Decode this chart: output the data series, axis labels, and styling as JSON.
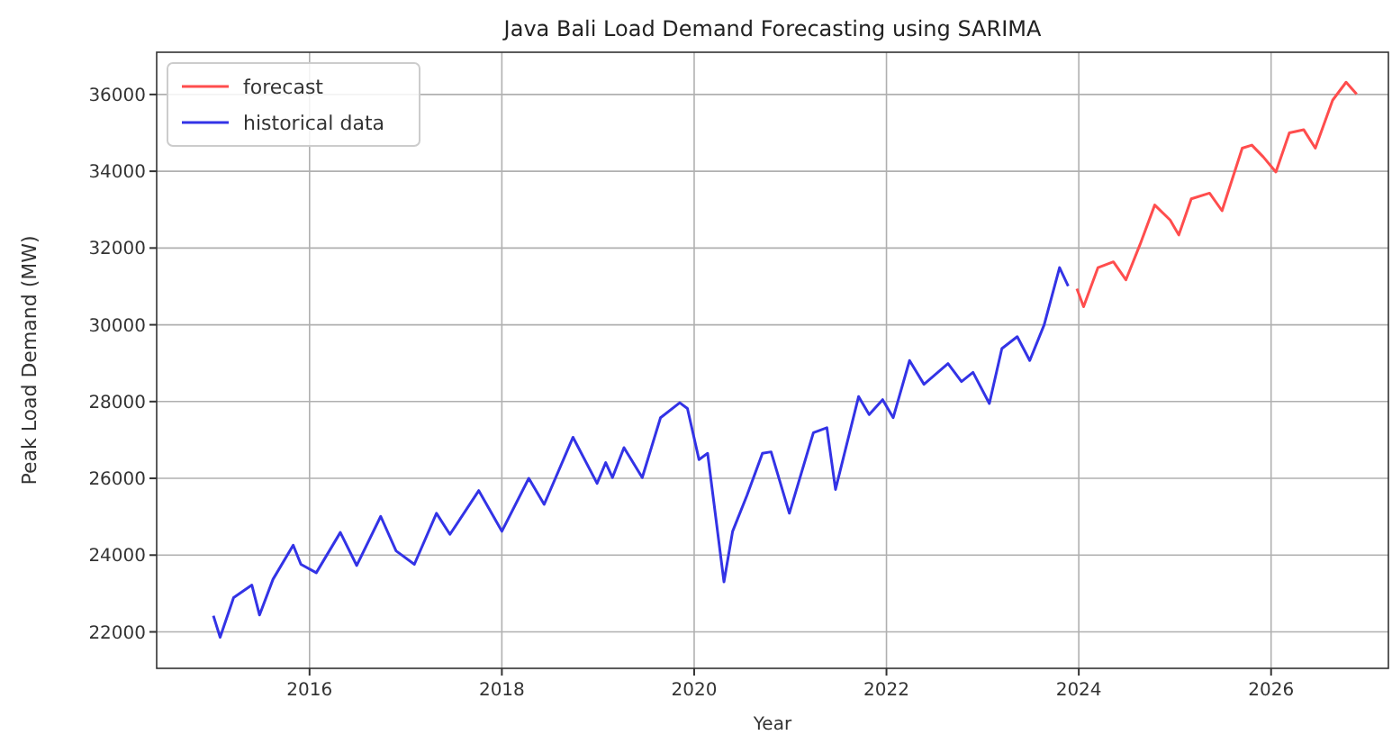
{
  "chart_data": {
    "type": "line",
    "title": "Java Bali Load Demand Forecasting using SARIMA",
    "xlabel": "Year",
    "ylabel": "Peak Load Demand (MW)",
    "xlim": [
      2014.41,
      2027.22
    ],
    "xticks": [
      2016,
      2018,
      2020,
      2022,
      2024,
      2026
    ],
    "ylim": [
      21050,
      37100
    ],
    "yticks": [
      22000,
      24000,
      26000,
      28000,
      30000,
      32000,
      34000,
      36000
    ],
    "grid": true,
    "legend": "top left",
    "series": [
      {
        "name": "forecast",
        "color": "#ff4d4d",
        "x": [
          2023.98,
          2024.05,
          2024.2,
          2024.36,
          2024.49,
          2024.64,
          2024.79,
          2024.95,
          2025.04,
          2025.17,
          2025.36,
          2025.49,
          2025.7,
          2025.8,
          2025.92,
          2026.05,
          2026.19,
          2026.34,
          2026.46,
          2026.64,
          2026.78,
          2026.89
        ],
        "values": [
          30940,
          30470,
          31490,
          31640,
          31170,
          32110,
          33120,
          32730,
          32340,
          33280,
          33430,
          32970,
          34600,
          34680,
          34370,
          33980,
          35000,
          35080,
          34600,
          35850,
          36320,
          36010
        ]
      },
      {
        "name": "historical data",
        "color": "#3333e6",
        "x": [
          2015.0,
          2015.07,
          2015.21,
          2015.4,
          2015.48,
          2015.62,
          2015.83,
          2015.91,
          2016.07,
          2016.32,
          2016.49,
          2016.74,
          2016.9,
          2017.09,
          2017.32,
          2017.46,
          2017.76,
          2018.0,
          2018.28,
          2018.44,
          2018.74,
          2018.99,
          2019.08,
          2019.15,
          2019.27,
          2019.46,
          2019.65,
          2019.85,
          2019.93,
          2020.05,
          2020.14,
          2020.31,
          2020.4,
          2020.55,
          2020.71,
          2020.8,
          2020.99,
          2021.24,
          2021.38,
          2021.47,
          2021.71,
          2021.82,
          2021.96,
          2022.07,
          2022.24,
          2022.39,
          2022.64,
          2022.78,
          2022.9,
          2023.07,
          2023.2,
          2023.36,
          2023.49,
          2023.64,
          2023.8,
          2023.89
        ],
        "values": [
          22420,
          21860,
          22890,
          23220,
          22440,
          23370,
          24260,
          23760,
          23540,
          24590,
          23730,
          25010,
          24110,
          23760,
          25090,
          24540,
          25680,
          24620,
          26000,
          25320,
          27070,
          25870,
          26410,
          26020,
          26800,
          26020,
          27580,
          27970,
          27820,
          26490,
          26650,
          23300,
          24620,
          25560,
          26650,
          26690,
          25090,
          27190,
          27320,
          25710,
          28130,
          27660,
          28050,
          27580,
          29070,
          28450,
          28990,
          28520,
          28760,
          27950,
          29380,
          29690,
          29070,
          30000,
          31490,
          31010
        ]
      }
    ]
  }
}
